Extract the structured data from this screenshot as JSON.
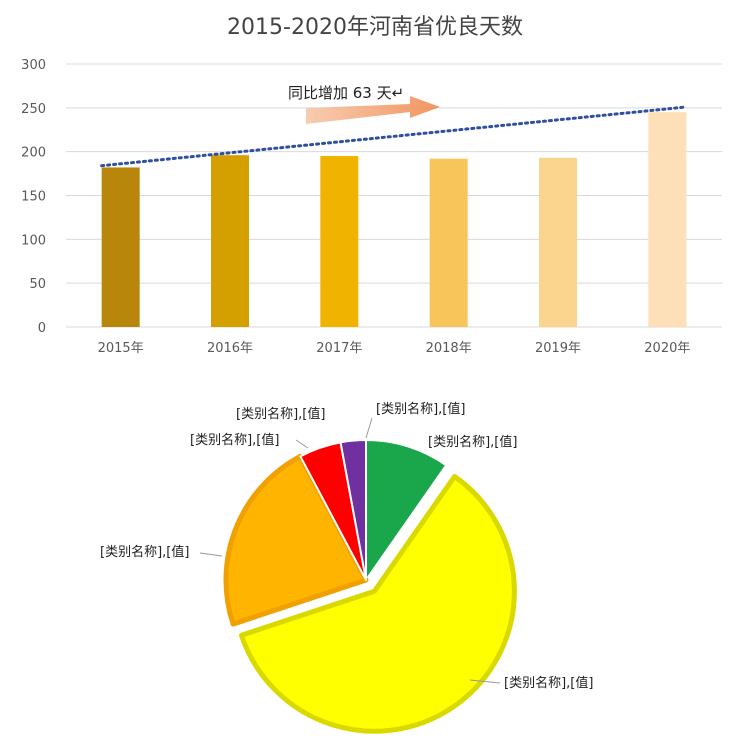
{
  "chart_data": [
    {
      "type": "bar",
      "title": "2015-2020年河南省优良天数",
      "categories": [
        "2015年",
        "2016年",
        "2017年",
        "2018年",
        "2019年",
        "2020年"
      ],
      "values": [
        182,
        196,
        195,
        192,
        193,
        245
      ],
      "ylim": [
        0,
        300
      ],
      "yticks": [
        "0",
        "50",
        "100",
        "150",
        "200",
        "250",
        "300"
      ],
      "grid": true,
      "bar_colors": [
        "#b8860b",
        "#d4a000",
        "#f0b400",
        "#f7c55a",
        "#fbd48e",
        "#fde0b8"
      ],
      "trendline": {
        "style": "dotted",
        "color": "#2f4f9f",
        "from": 184,
        "to": 251
      },
      "annotation": {
        "text": "同比增加 63 天↵"
      }
    },
    {
      "type": "pie",
      "labels": [
        "[类别名称],[值]",
        "[类别名称],[值]",
        "[类别名称],[值]",
        "[类别名称],[值]",
        "[类别名称],[值]"
      ],
      "values": [
        10,
        62,
        23,
        5,
        3
      ],
      "colors": [
        "#1aa64a",
        "#ffff00",
        "#ffb400",
        "#ff0000",
        "#7030a0"
      ],
      "border_colors": [
        "#ffffff",
        "#d9d900",
        "#f0a000",
        "#ffffff",
        "#ffffff"
      ],
      "exploded": [
        false,
        true,
        false,
        false,
        false
      ]
    }
  ]
}
